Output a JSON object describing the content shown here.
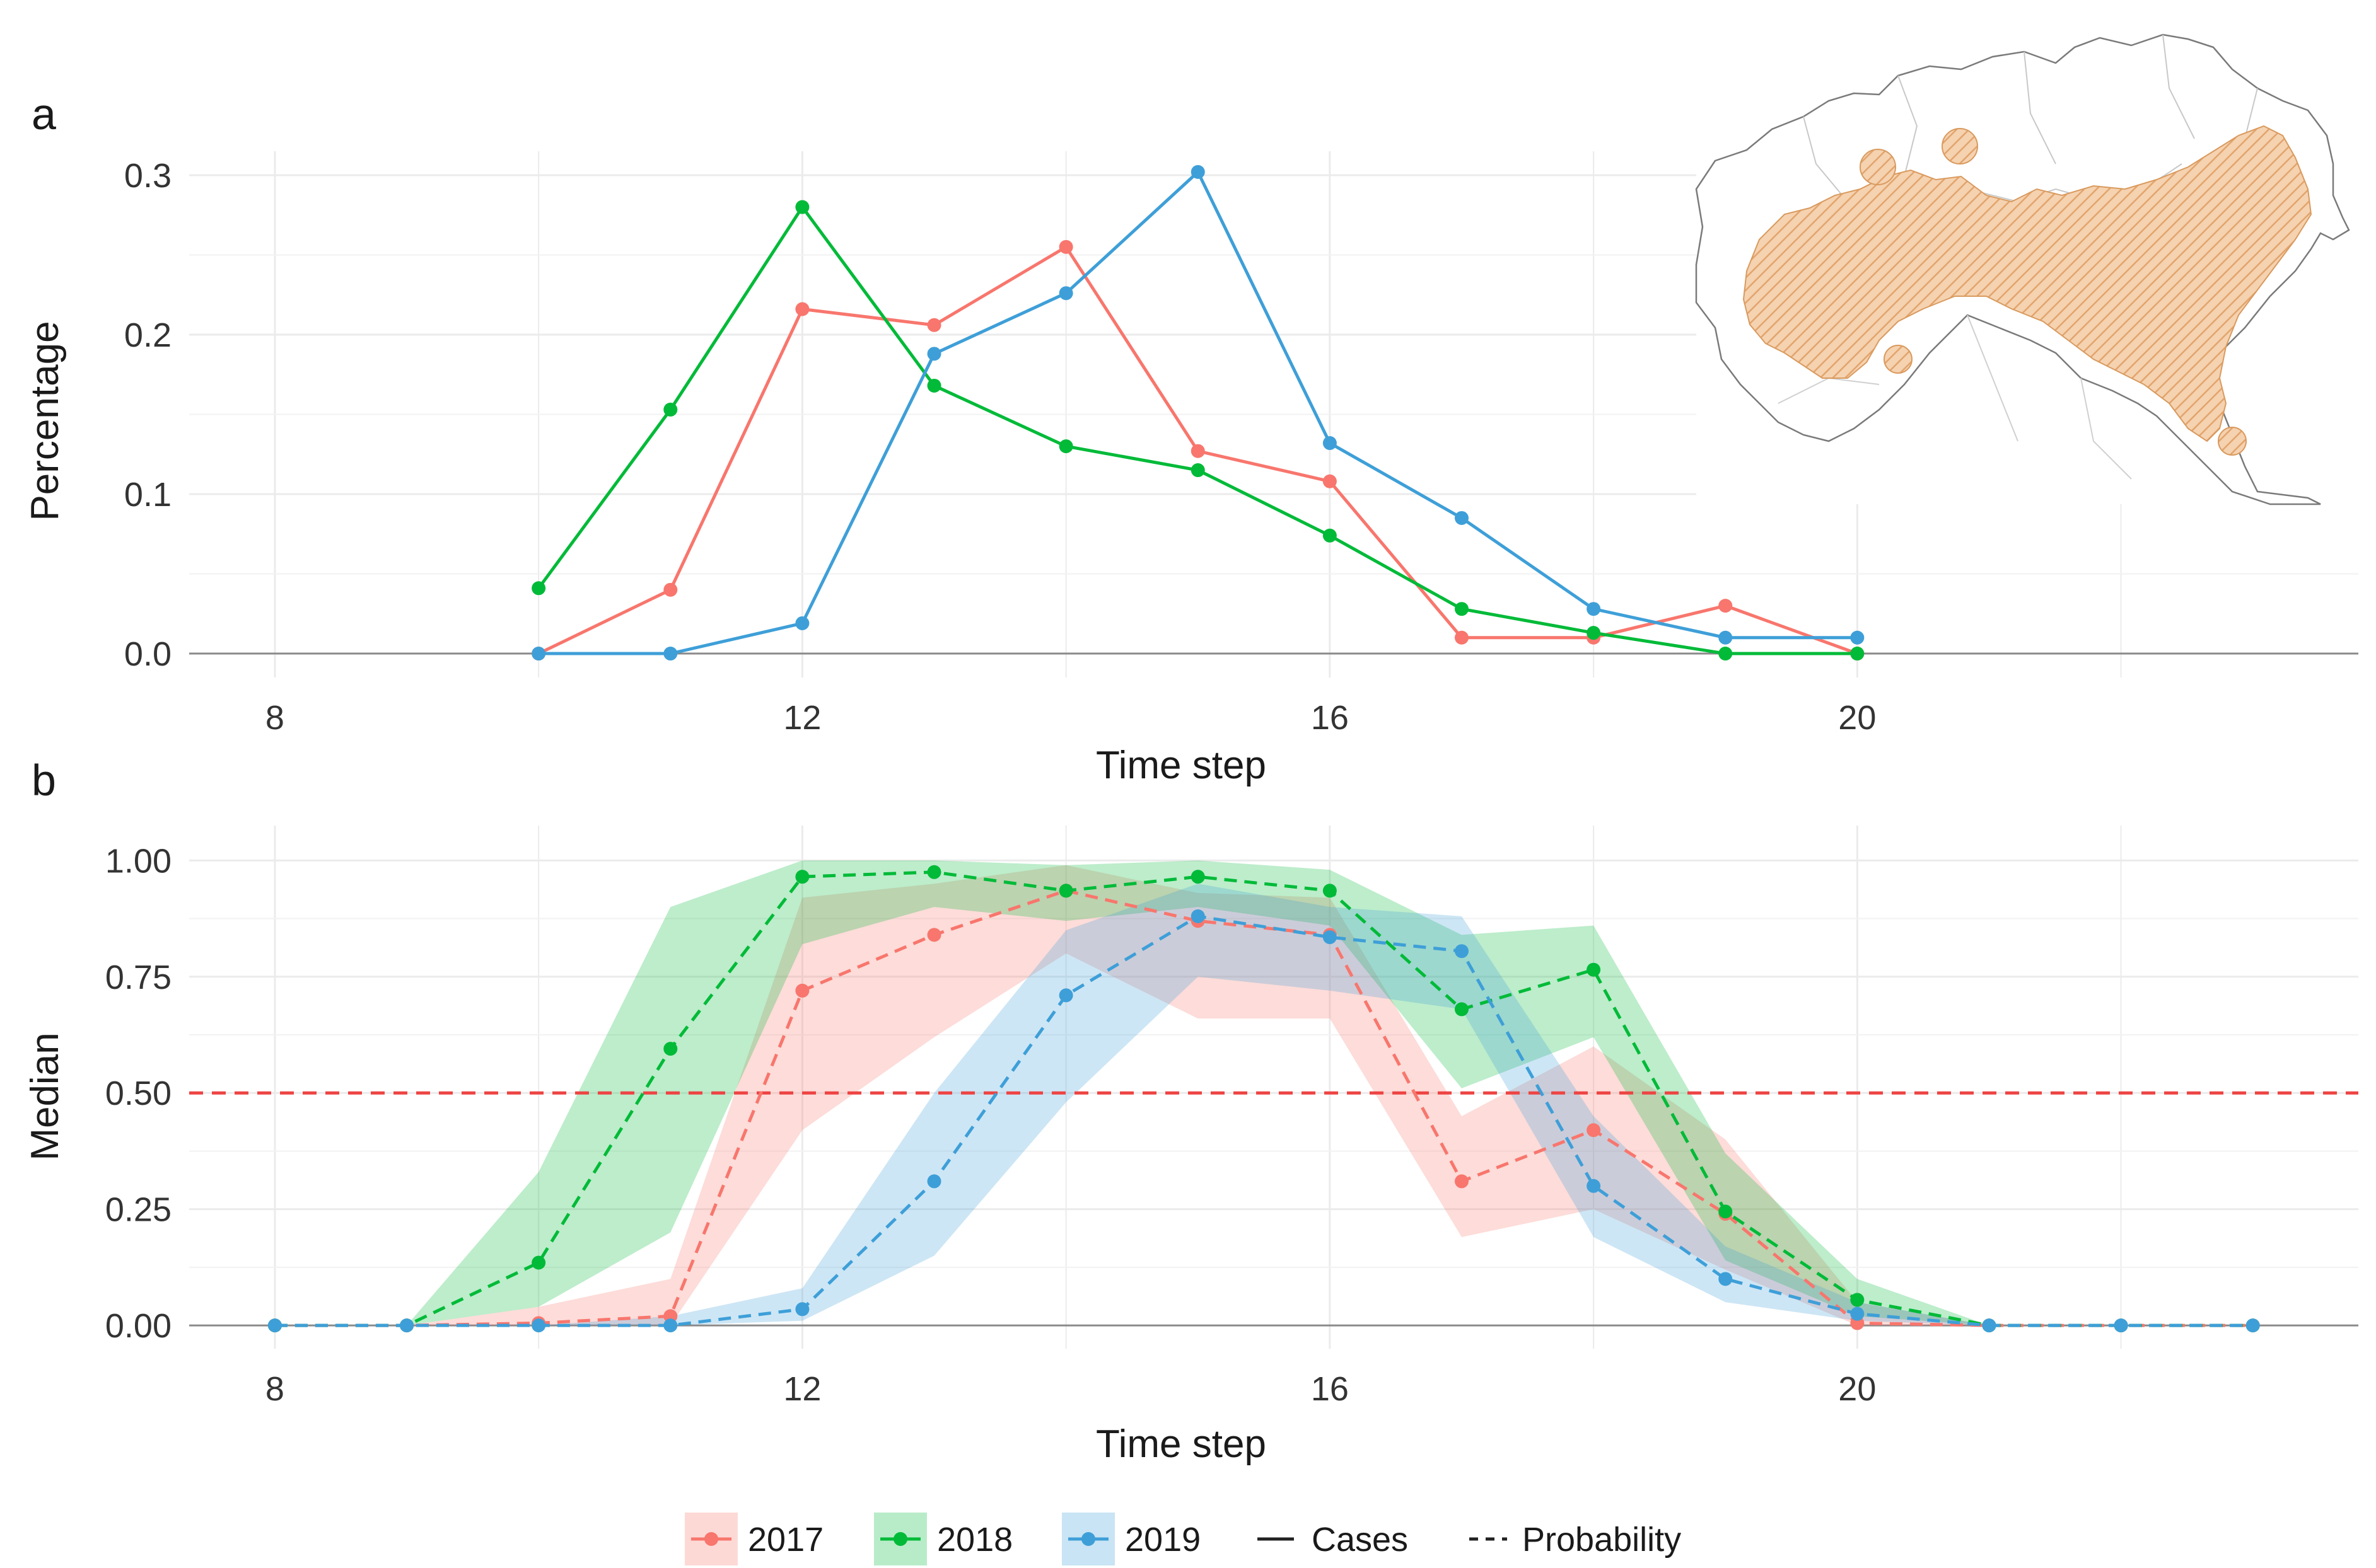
{
  "figure": {
    "legend": {
      "years": [
        {
          "label": "2017",
          "color": "#F8766D"
        },
        {
          "label": "2018",
          "color": "#00BA38"
        },
        {
          "label": "2019",
          "color": "#3E9FD8"
        }
      ],
      "line_types": [
        {
          "label": "Cases",
          "style": "solid"
        },
        {
          "label": "Probability",
          "style": "dashed"
        }
      ]
    },
    "map_inset": {
      "description_icon": "map-icon",
      "fill_color": "#E8A66B"
    }
  },
  "chart_data": [
    {
      "panel_label": "a",
      "type": "line",
      "xlabel": "Time step",
      "ylabel": "Percentage",
      "xlim": [
        7.35,
        23.8
      ],
      "ylim": [
        -0.015,
        0.315
      ],
      "x_ticks": [
        8,
        12,
        16,
        20
      ],
      "y_ticks": [
        0.0,
        0.1,
        0.2,
        0.3
      ],
      "y_tick_labels": [
        "0.0",
        "0.1",
        "0.2",
        "0.3"
      ],
      "series": [
        {
          "name": "2017",
          "color": "#F8766D",
          "x": [
            10,
            11,
            12,
            13,
            14,
            15,
            16,
            17,
            18,
            19,
            20
          ],
          "values": [
            0.0,
            0.04,
            0.216,
            0.206,
            0.255,
            0.127,
            0.108,
            0.01,
            0.01,
            0.03,
            0.0
          ]
        },
        {
          "name": "2018",
          "color": "#00BA38",
          "x": [
            10,
            11,
            12,
            13,
            14,
            15,
            16,
            17,
            18,
            19,
            20
          ],
          "values": [
            0.041,
            0.153,
            0.28,
            0.168,
            0.13,
            0.115,
            0.074,
            0.028,
            0.013,
            0.0,
            0.0
          ]
        },
        {
          "name": "2019",
          "color": "#3E9FD8",
          "x": [
            10,
            11,
            12,
            13,
            14,
            15,
            16,
            17,
            18,
            19,
            20
          ],
          "values": [
            0.0,
            0.0,
            0.019,
            0.188,
            0.226,
            0.302,
            0.132,
            0.085,
            0.028,
            0.01,
            0.01
          ]
        }
      ]
    },
    {
      "panel_label": "b",
      "type": "line",
      "xlabel": "Time step",
      "ylabel": "Median",
      "xlim": [
        7.35,
        23.8
      ],
      "ylim": [
        -0.05,
        1.075
      ],
      "x_ticks": [
        8,
        12,
        16,
        20
      ],
      "y_ticks": [
        0.0,
        0.25,
        0.5,
        0.75,
        1.0
      ],
      "y_tick_labels": [
        "0.00",
        "0.25",
        "0.50",
        "0.75",
        "1.00"
      ],
      "reference_line": {
        "y": 0.5,
        "color": "#EE4444",
        "style": "dashed"
      },
      "series": [
        {
          "name": "2017",
          "color": "#F8766D",
          "x": [
            8,
            9,
            10,
            11,
            12,
            13,
            14,
            15,
            16,
            17,
            18,
            19,
            20,
            21,
            22,
            23
          ],
          "values": [
            0,
            0,
            0.005,
            0.02,
            0.72,
            0.84,
            0.935,
            0.87,
            0.84,
            0.31,
            0.42,
            0.24,
            0.005,
            0,
            0,
            0
          ],
          "lower": [
            0,
            0,
            0,
            0,
            0.42,
            0.62,
            0.8,
            0.66,
            0.66,
            0.19,
            0.25,
            0.12,
            0,
            0,
            0,
            0
          ],
          "upper": [
            0,
            0,
            0.04,
            0.1,
            0.92,
            0.95,
            0.99,
            0.93,
            0.92,
            0.45,
            0.6,
            0.4,
            0.05,
            0,
            0,
            0
          ]
        },
        {
          "name": "2018",
          "color": "#00BA38",
          "x": [
            8,
            9,
            10,
            11,
            12,
            13,
            14,
            15,
            16,
            17,
            18,
            19,
            20,
            21,
            22,
            23
          ],
          "values": [
            0,
            0,
            0.135,
            0.595,
            0.965,
            0.975,
            0.935,
            0.965,
            0.935,
            0.68,
            0.765,
            0.245,
            0.055,
            0,
            0,
            0
          ],
          "lower": [
            0,
            0,
            0.04,
            0.2,
            0.82,
            0.9,
            0.87,
            0.9,
            0.86,
            0.51,
            0.62,
            0.14,
            0.02,
            0,
            0,
            0
          ],
          "upper": [
            0,
            0,
            0.33,
            0.9,
            1.0,
            1.0,
            0.99,
            1.0,
            0.98,
            0.84,
            0.86,
            0.37,
            0.1,
            0,
            0,
            0
          ]
        },
        {
          "name": "2019",
          "color": "#3E9FD8",
          "x": [
            8,
            9,
            10,
            11,
            12,
            13,
            14,
            15,
            16,
            17,
            18,
            19,
            20,
            21,
            22,
            23
          ],
          "values": [
            0,
            0,
            0,
            0,
            0.035,
            0.31,
            0.71,
            0.88,
            0.835,
            0.805,
            0.3,
            0.1,
            0.025,
            0,
            0,
            0
          ],
          "lower": [
            0,
            0,
            0,
            0,
            0.01,
            0.15,
            0.48,
            0.75,
            0.72,
            0.68,
            0.19,
            0.05,
            0.01,
            0,
            0,
            0
          ],
          "upper": [
            0,
            0,
            0,
            0.02,
            0.08,
            0.5,
            0.85,
            0.95,
            0.9,
            0.88,
            0.45,
            0.17,
            0.05,
            0,
            0,
            0
          ]
        }
      ]
    }
  ]
}
